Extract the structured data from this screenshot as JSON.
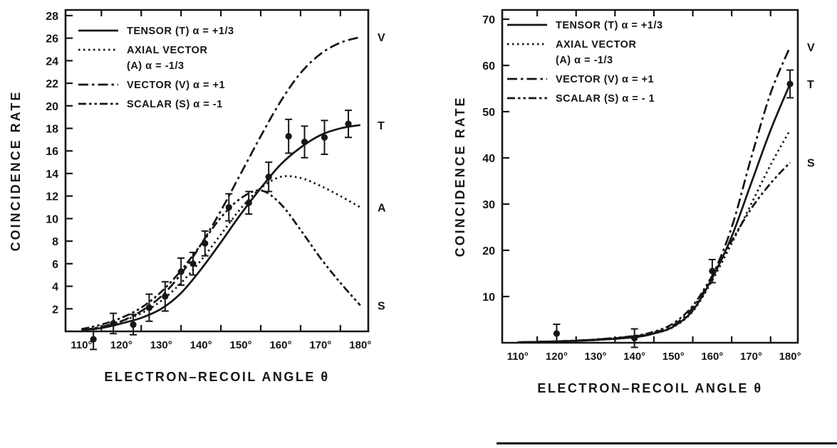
{
  "figure": {
    "background": "#ffffff",
    "ink_color": "#161616"
  },
  "chart_data": [
    {
      "id": "left",
      "type": "line",
      "title": "",
      "xlabel": "ELECTRON–RECOIL ANGLE  θ",
      "ylabel": "COINCIDENCE RATE",
      "xlim": [
        106,
        182
      ],
      "ylim": [
        0,
        28.5
      ],
      "x_ticks": [
        110,
        120,
        130,
        140,
        150,
        160,
        170,
        180
      ],
      "x_tick_labels": [
        "110°",
        "120°",
        "130°",
        "140°",
        "150°",
        "160°",
        "170°",
        "180°"
      ],
      "x_minor_ticks": [
        115,
        125,
        135,
        145,
        155,
        165,
        175
      ],
      "y_ticks": [
        2,
        4,
        6,
        8,
        10,
        12,
        14,
        16,
        18,
        20,
        22,
        24,
        26,
        28
      ],
      "grid": "off",
      "legend_position": "top-left-inside",
      "legend": [
        {
          "style": "solid",
          "lines": [
            "TENSOR (T) α = +1/3"
          ]
        },
        {
          "style": "dotted",
          "lines": [
            "AXIAL VECTOR",
            "(A) α = -1/3"
          ]
        },
        {
          "style": "dashdot",
          "lines": [
            "VECTOR (V) α = +1"
          ]
        },
        {
          "style": "dashdotdot",
          "lines": [
            "SCALAR (S) α = -1"
          ]
        }
      ],
      "series": [
        {
          "name": "VECTOR (V) α=+1",
          "style": "dashdot",
          "end_label": "V",
          "x": [
            110,
            115,
            120,
            125,
            130,
            135,
            140,
            145,
            150,
            155,
            160,
            165,
            170,
            175,
            180
          ],
          "y": [
            0.1,
            0.4,
            0.9,
            1.8,
            3.1,
            5.1,
            7.7,
            10.7,
            14.0,
            17.3,
            20.4,
            22.9,
            24.6,
            25.6,
            26.1
          ]
        },
        {
          "name": "SCALAR (S) α=-1",
          "style": "dashdotdot",
          "end_label": "S",
          "x": [
            110,
            115,
            120,
            125,
            130,
            135,
            140,
            145,
            150,
            155,
            160,
            165,
            170,
            175,
            180
          ],
          "y": [
            0.2,
            0.6,
            1.2,
            2.1,
            3.5,
            5.4,
            7.7,
            10.1,
            11.8,
            12.5,
            11.3,
            9.0,
            6.5,
            4.3,
            2.3
          ]
        },
        {
          "name": "AXIAL VECTOR (A) α=-1/3",
          "style": "dotted",
          "end_label": "A",
          "x": [
            110,
            115,
            120,
            125,
            130,
            135,
            140,
            145,
            150,
            155,
            160,
            165,
            170,
            175,
            180
          ],
          "y": [
            0.1,
            0.4,
            0.9,
            1.6,
            2.7,
            4.3,
            6.3,
            8.6,
            10.9,
            12.7,
            13.7,
            13.6,
            12.9,
            12.0,
            11.0
          ]
        },
        {
          "name": "TENSOR (T) α=+1/3",
          "style": "solid",
          "end_label": "T",
          "x": [
            110,
            115,
            120,
            125,
            130,
            135,
            140,
            145,
            150,
            155,
            160,
            165,
            170,
            175,
            180
          ],
          "y": [
            0.1,
            0.3,
            0.7,
            1.2,
            2.0,
            3.4,
            5.5,
            7.9,
            10.4,
            12.7,
            14.8,
            16.3,
            17.4,
            18.0,
            18.3
          ]
        }
      ],
      "points": {
        "name": "measured coincidence rate",
        "x": [
          113,
          118,
          123,
          127,
          131,
          135,
          138,
          141,
          147,
          152,
          157,
          162,
          166,
          171,
          177
        ],
        "y": [
          -0.7,
          0.7,
          0.6,
          2.1,
          3.1,
          5.3,
          6.0,
          7.8,
          11.0,
          11.4,
          13.7,
          17.3,
          16.8,
          17.2,
          18.4
        ],
        "err": [
          0.9,
          0.9,
          0.9,
          1.2,
          1.3,
          1.2,
          1.0,
          1.1,
          1.2,
          1.0,
          1.3,
          1.5,
          1.4,
          1.5,
          1.2
        ]
      }
    },
    {
      "id": "right",
      "type": "line",
      "title": "",
      "xlabel": "ELECTRON–RECOIL ANGLE  θ",
      "ylabel": "COINCIDENCE RATE",
      "xlim": [
        106,
        182
      ],
      "ylim": [
        0,
        72
      ],
      "x_ticks": [
        110,
        120,
        130,
        140,
        150,
        160,
        170,
        180
      ],
      "x_tick_labels": [
        "110°",
        "120°",
        "130°",
        "140°",
        "150°",
        "160°",
        "170°",
        "180°"
      ],
      "x_minor_ticks": [
        115,
        125,
        135,
        145,
        155,
        165,
        175
      ],
      "y_ticks": [
        10,
        20,
        30,
        40,
        50,
        60,
        70
      ],
      "grid": "off",
      "legend_position": "top-left-inside",
      "legend": [
        {
          "style": "solid",
          "lines": [
            "TENSOR (T) α = +1/3"
          ]
        },
        {
          "style": "dotted",
          "lines": [
            "AXIAL VECTOR",
            "(A) α = -1/3"
          ]
        },
        {
          "style": "dashdot",
          "lines": [
            "VECTOR (V) α = +1"
          ]
        },
        {
          "style": "dashdotdot",
          "lines": [
            "SCALAR (S) α = - 1"
          ]
        }
      ],
      "series": [
        {
          "name": "VECTOR (V) α=+1",
          "style": "dashdot",
          "end_label": "V",
          "x": [
            110,
            120,
            130,
            140,
            145,
            150,
            155,
            160,
            165,
            170,
            175,
            180
          ],
          "y": [
            0.1,
            0.3,
            0.7,
            1.4,
            2.2,
            3.8,
            7.6,
            14.5,
            25.0,
            40.0,
            54.0,
            64.0
          ]
        },
        {
          "name": "AXIAL VECTOR (A) α=-1/3",
          "style": "dotted",
          "end_label": "",
          "x": [
            110,
            120,
            130,
            140,
            145,
            150,
            155,
            160,
            165,
            170,
            175,
            180
          ],
          "y": [
            0.1,
            0.3,
            0.6,
            1.2,
            2.0,
            3.4,
            6.8,
            13.5,
            21.5,
            30.0,
            38.5,
            46.0
          ]
        },
        {
          "name": "SCALAR (S) α=-1",
          "style": "dashdotdot",
          "end_label": "S",
          "x": [
            110,
            120,
            130,
            140,
            145,
            150,
            155,
            160,
            165,
            170,
            175,
            180
          ],
          "y": [
            0.1,
            0.3,
            0.7,
            1.5,
            2.4,
            4.2,
            8.0,
            14.5,
            22.0,
            29.0,
            34.5,
            39.0
          ]
        },
        {
          "name": "TENSOR (T) α=+1/3",
          "style": "solid",
          "end_label": "T",
          "x": [
            110,
            120,
            130,
            140,
            145,
            150,
            155,
            160,
            165,
            170,
            175,
            180
          ],
          "y": [
            0.1,
            0.3,
            0.6,
            1.2,
            2.0,
            3.5,
            7.0,
            14.0,
            23.0,
            34.5,
            46.0,
            56.0
          ]
        }
      ],
      "points": {
        "name": "measured coincidence rate",
        "x": [
          120,
          140,
          160,
          180
        ],
        "y": [
          2.0,
          1.0,
          15.5,
          56.0
        ],
        "err": [
          2.0,
          2.0,
          2.5,
          3.0
        ]
      }
    }
  ]
}
